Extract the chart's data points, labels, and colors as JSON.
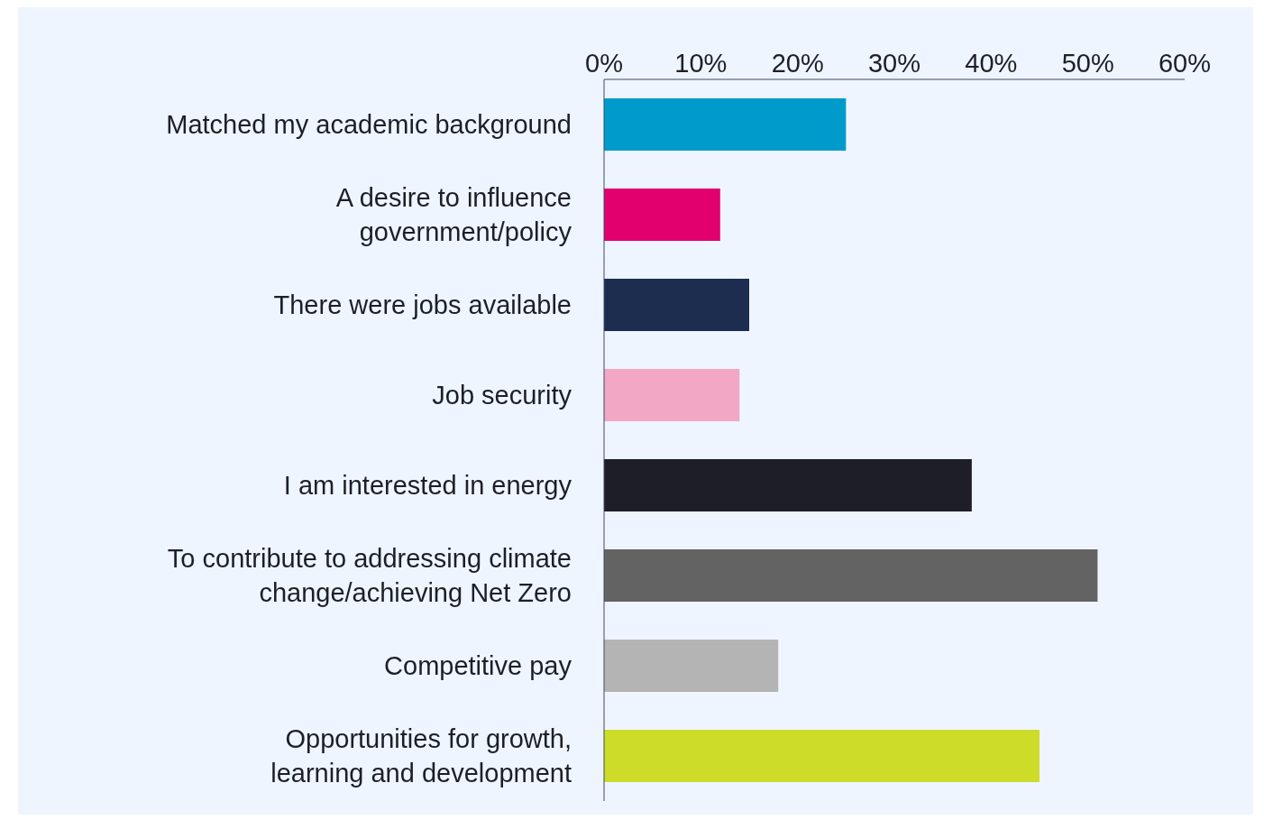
{
  "chart_data": {
    "type": "bar",
    "orientation": "horizontal",
    "categories": [
      "Matched my academic background",
      "A desire to influence\ngovernment/policy",
      "There were jobs available",
      "Job security",
      "I am interested in energy",
      "To contribute to addressing climate\nchange/achieving Net Zero",
      "Competitive pay",
      "Opportunities for growth,\nlearning and development"
    ],
    "values": [
      25,
      12,
      15,
      14,
      38,
      51,
      18,
      45
    ],
    "colors": [
      "#009bcb",
      "#e2006f",
      "#1c2d50",
      "#f2a7c4",
      "#1d1e27",
      "#636363",
      "#b4b4b4",
      "#cddc28"
    ],
    "xlim": [
      0,
      60
    ],
    "xticks": [
      {
        "value": 0,
        "label": "0%"
      },
      {
        "value": 10,
        "label": "10%"
      },
      {
        "value": 20,
        "label": "20%"
      },
      {
        "value": 30,
        "label": "30%"
      },
      {
        "value": 40,
        "label": "40%"
      },
      {
        "value": 50,
        "label": "50%"
      },
      {
        "value": 60,
        "label": "60%"
      }
    ],
    "legend": false
  }
}
